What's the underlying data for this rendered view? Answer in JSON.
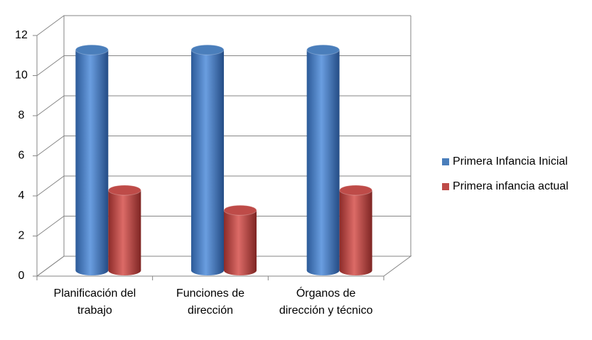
{
  "chart_data": {
    "type": "bar3d",
    "categories": [
      "Planificación del trabajo",
      "Funciones de dirección",
      "Órganos de dirección y técnico"
    ],
    "series": [
      {
        "name": "Primera Infancia Inicial",
        "color": "#4a7ebb",
        "values": [
          11,
          11,
          11
        ]
      },
      {
        "name": "Primera infancia actual",
        "color": "#be4b48",
        "values": [
          4,
          3,
          4
        ]
      }
    ],
    "ylim": [
      0,
      12
    ],
    "yticks": [
      0,
      2,
      4,
      6,
      8,
      10,
      12
    ],
    "grid": true,
    "legend": "right"
  }
}
